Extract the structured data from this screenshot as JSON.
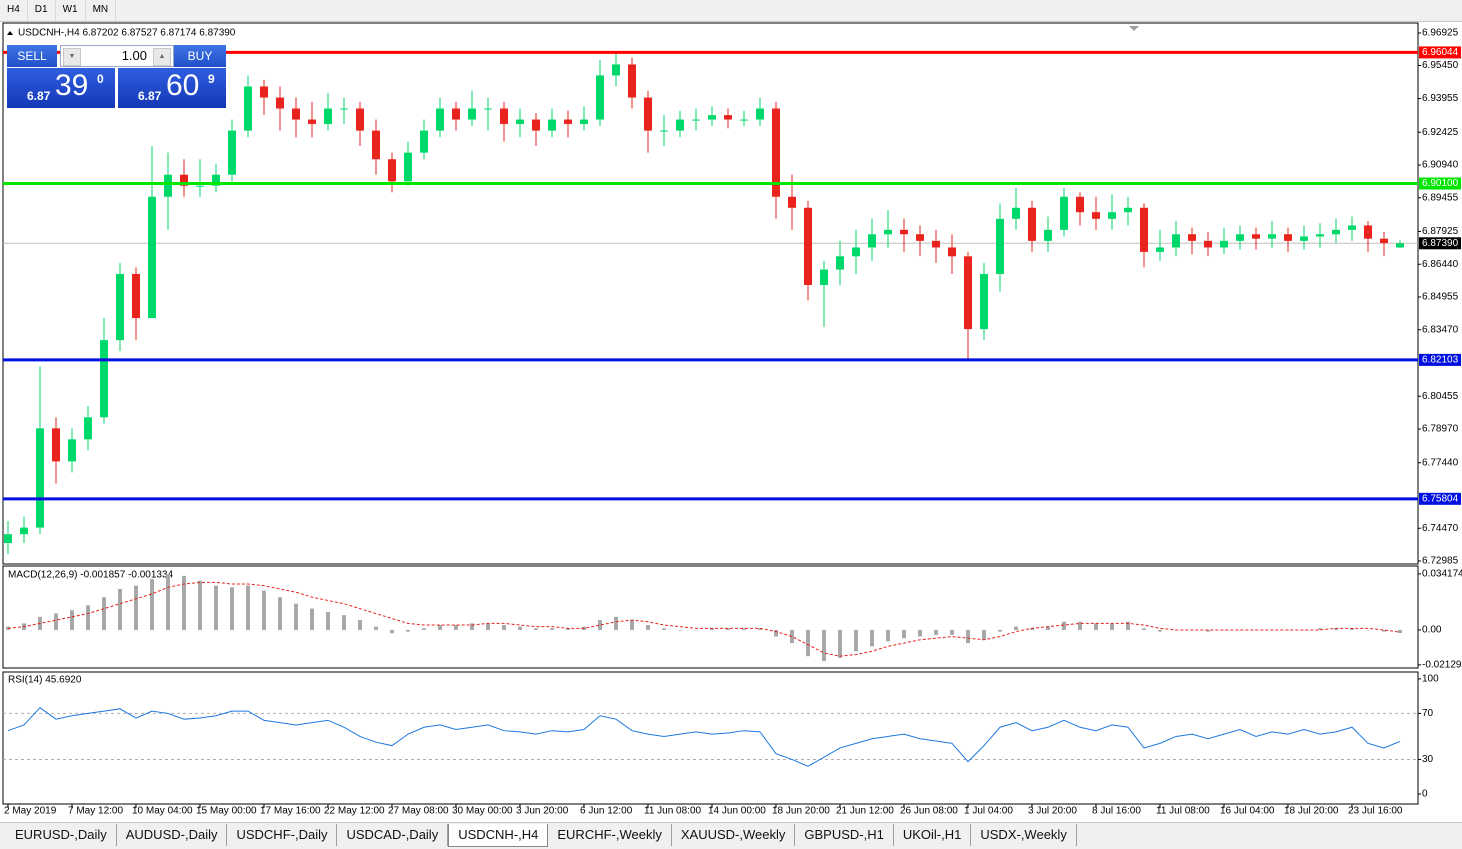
{
  "toolbar": {
    "timeframes": [
      "H4",
      "D1",
      "W1",
      "MN"
    ]
  },
  "trade_panel": {
    "sell_label": "SELL",
    "buy_label": "BUY",
    "lot": "1.00",
    "bid": {
      "prefix": "6.87",
      "big": "39",
      "small": "0"
    },
    "ask": {
      "prefix": "6.87",
      "big": "60",
      "small": "9"
    }
  },
  "chart_data": [
    {
      "type": "candlestick",
      "title": "USDCNH-,H4 6.87202 6.87527 6.87174 6.87390",
      "up_color": "#00d96a",
      "down_color": "#e8241c",
      "ylim": [
        6.72849,
        6.97378
      ],
      "yticks": [
        6.96925,
        {
          "value": 6.9545,
          "label": "6.95450"
        },
        6.93955,
        6.92425,
        {
          "value": 6.9094,
          "label": "6.90940"
        },
        6.89455,
        6.87925,
        {
          "value": 6.8644,
          "label": "6.86440"
        },
        6.84955,
        {
          "value": 6.8347,
          "label": "6.83470"
        },
        6.80455,
        {
          "value": 6.7897,
          "label": "6.78970"
        },
        {
          "value": 6.7744,
          "label": "6.77440"
        },
        {
          "value": 6.7447,
          "label": "6.74470"
        },
        6.72985
      ],
      "hlines": [
        {
          "value": 6.96044,
          "color": "#ff0000"
        },
        {
          "value": 6.901,
          "label": "6.90100",
          "color": "#00e600"
        },
        {
          "value": 6.82103,
          "color": "#0010e0"
        },
        {
          "value": 6.75804,
          "color": "#0010e0"
        }
      ],
      "last_price": {
        "value": 6.8739,
        "label": "6.87390",
        "color": "#c0c0c0"
      },
      "categories": [
        "2 May 2019",
        null,
        null,
        null,
        "7 May 12:00",
        null,
        null,
        null,
        "10 May 04:00",
        null,
        null,
        null,
        "15 May 00:00",
        null,
        null,
        null,
        "17 May 16:00",
        null,
        null,
        null,
        "22 May 12:00",
        null,
        null,
        null,
        "27 May 08:00",
        null,
        null,
        null,
        "30 May 00:00",
        null,
        null,
        null,
        "3 Jun 20:00",
        null,
        null,
        null,
        "6 Jun 12:00",
        null,
        null,
        null,
        "11 Jun 08:00",
        null,
        null,
        null,
        "14 Jun 00:00",
        null,
        null,
        null,
        "18 Jun 20:00",
        null,
        null,
        null,
        "21 Jun 12:00",
        null,
        null,
        null,
        "26 Jun 08:00",
        null,
        null,
        null,
        "1 Jul 04:00",
        null,
        null,
        null,
        "3 Jul 20:00",
        null,
        null,
        null,
        "8 Jul 16:00",
        null,
        null,
        null,
        "11 Jul 08:00",
        null,
        null,
        null,
        "16 Jul 04:00",
        null,
        null,
        null,
        "18 Jul 20:00",
        null,
        null,
        null,
        "23 Jul 16:00",
        null,
        null,
        null
      ],
      "candles": [
        [
          6.738,
          6.748,
          6.733,
          6.742
        ],
        [
          6.742,
          6.75,
          6.738,
          6.745
        ],
        [
          6.745,
          6.818,
          6.742,
          6.79
        ],
        [
          6.79,
          6.795,
          6.765,
          6.775
        ],
        [
          6.775,
          6.79,
          6.77,
          6.785
        ],
        [
          6.785,
          6.8,
          6.78,
          6.795
        ],
        [
          6.795,
          6.84,
          6.792,
          6.83
        ],
        [
          6.83,
          6.865,
          6.825,
          6.86
        ],
        [
          6.86,
          6.863,
          6.83,
          6.84
        ],
        [
          6.84,
          6.918,
          6.84,
          6.895
        ],
        [
          6.895,
          6.915,
          6.88,
          6.905
        ],
        [
          6.905,
          6.912,
          6.895,
          6.9
        ],
        [
          6.9,
          6.912,
          6.895,
          6.9
        ],
        [
          6.9,
          6.91,
          6.897,
          6.905
        ],
        [
          6.905,
          6.93,
          6.902,
          6.925
        ],
        [
          6.925,
          6.95,
          6.922,
          6.945
        ],
        [
          6.945,
          6.948,
          6.932,
          6.94
        ],
        [
          6.94,
          6.945,
          6.925,
          6.935
        ],
        [
          6.935,
          6.94,
          6.922,
          6.93
        ],
        [
          6.93,
          6.938,
          6.922,
          6.928
        ],
        [
          6.928,
          6.942,
          6.925,
          6.935
        ],
        [
          6.935,
          6.94,
          6.928,
          6.935
        ],
        [
          6.935,
          6.938,
          6.918,
          6.925
        ],
        [
          6.925,
          6.93,
          6.905,
          6.912
        ],
        [
          6.912,
          6.915,
          6.897,
          6.902
        ],
        [
          6.902,
          6.92,
          6.9,
          6.915
        ],
        [
          6.915,
          6.93,
          6.912,
          6.925
        ],
        [
          6.925,
          6.94,
          6.922,
          6.935
        ],
        [
          6.935,
          6.938,
          6.925,
          6.93
        ],
        [
          6.93,
          6.943,
          6.927,
          6.935
        ],
        [
          6.935,
          6.94,
          6.925,
          6.935
        ],
        [
          6.935,
          6.938,
          6.92,
          6.928
        ],
        [
          6.928,
          6.935,
          6.922,
          6.93
        ],
        [
          6.93,
          6.933,
          6.918,
          6.925
        ],
        [
          6.925,
          6.935,
          6.922,
          6.93
        ],
        [
          6.93,
          6.934,
          6.922,
          6.928
        ],
        [
          6.928,
          6.936,
          6.925,
          6.93
        ],
        [
          6.93,
          6.957,
          6.927,
          6.95
        ],
        [
          6.95,
          6.9604,
          6.945,
          6.955
        ],
        [
          6.955,
          6.958,
          6.935,
          6.94
        ],
        [
          6.94,
          6.943,
          6.915,
          6.925
        ],
        [
          6.925,
          6.932,
          6.918,
          6.925
        ],
        [
          6.925,
          6.934,
          6.922,
          6.93
        ],
        [
          6.93,
          6.935,
          6.925,
          6.93
        ],
        [
          6.93,
          6.936,
          6.927,
          6.932
        ],
        [
          6.932,
          6.935,
          6.926,
          6.93
        ],
        [
          6.93,
          6.934,
          6.927,
          6.93
        ],
        [
          6.93,
          6.94,
          6.927,
          6.935
        ],
        [
          6.935,
          6.938,
          6.885,
          6.895
        ],
        [
          6.895,
          6.905,
          6.88,
          6.89
        ],
        [
          6.89,
          6.893,
          6.848,
          6.855
        ],
        [
          6.855,
          6.866,
          6.836,
          6.862
        ],
        [
          6.862,
          6.875,
          6.855,
          6.868
        ],
        [
          6.868,
          6.88,
          6.86,
          6.872
        ],
        [
          6.872,
          6.885,
          6.866,
          6.878
        ],
        [
          6.878,
          6.889,
          6.872,
          6.88
        ],
        [
          6.88,
          6.885,
          6.87,
          6.878
        ],
        [
          6.878,
          6.882,
          6.868,
          6.875
        ],
        [
          6.875,
          6.88,
          6.865,
          6.872
        ],
        [
          6.872,
          6.878,
          6.86,
          6.868
        ],
        [
          6.868,
          6.87,
          6.821,
          6.835
        ],
        [
          6.835,
          6.865,
          6.83,
          6.86
        ],
        [
          6.86,
          6.892,
          6.852,
          6.885
        ],
        [
          6.885,
          6.899,
          6.88,
          6.89
        ],
        [
          6.89,
          6.893,
          6.87,
          6.875
        ],
        [
          6.875,
          6.886,
          6.87,
          6.88
        ],
        [
          6.88,
          6.899,
          6.877,
          6.895
        ],
        [
          6.895,
          6.897,
          6.882,
          6.888
        ],
        [
          6.888,
          6.895,
          6.88,
          6.885
        ],
        [
          6.885,
          6.896,
          6.88,
          6.888
        ],
        [
          6.888,
          6.895,
          6.882,
          6.89
        ],
        [
          6.89,
          6.892,
          6.863,
          6.87
        ],
        [
          6.87,
          6.88,
          6.866,
          6.872
        ],
        [
          6.872,
          6.884,
          6.868,
          6.878
        ],
        [
          6.878,
          6.881,
          6.869,
          6.875
        ],
        [
          6.875,
          6.879,
          6.868,
          6.872
        ],
        [
          6.872,
          6.881,
          6.869,
          6.875
        ],
        [
          6.875,
          6.882,
          6.871,
          6.878
        ],
        [
          6.878,
          6.881,
          6.871,
          6.876
        ],
        [
          6.876,
          6.884,
          6.872,
          6.878
        ],
        [
          6.878,
          6.881,
          6.87,
          6.875
        ],
        [
          6.875,
          6.882,
          6.871,
          6.877
        ],
        [
          6.877,
          6.883,
          6.872,
          6.878
        ],
        [
          6.878,
          6.885,
          6.874,
          6.88
        ],
        [
          6.88,
          6.886,
          6.875,
          6.882
        ],
        [
          6.882,
          6.884,
          6.87,
          6.876
        ],
        [
          6.876,
          6.879,
          6.868,
          6.874
        ],
        [
          6.87202,
          6.87527,
          6.87174,
          6.8739
        ]
      ]
    },
    {
      "type": "macd",
      "title": "MACD(12,26,9) -0.001857 -0.001334",
      "histogram_color": "#a8a8a8",
      "signal_color": "#e8241c",
      "ylim": [
        -0.0232,
        0.039
      ],
      "yticks": [
        0.034174,
        {
          "value": 0,
          "label": "0.00"
        },
        -0.021296
      ],
      "histogram": [
        0.002,
        0.004,
        0.008,
        0.01,
        0.012,
        0.015,
        0.02,
        0.025,
        0.027,
        0.031,
        0.034,
        0.033,
        0.03,
        0.027,
        0.026,
        0.027,
        0.024,
        0.02,
        0.016,
        0.013,
        0.011,
        0.009,
        0.006,
        0.002,
        -0.002,
        -0.001,
        0.001,
        0.003,
        0.003,
        0.004,
        0.004,
        0.003,
        0.002,
        0.001,
        0.001,
        0.001,
        0.002,
        0.006,
        0.008,
        0.006,
        0.003,
        0.001,
        0.0,
        0.0,
        0.001,
        0.001,
        0.001,
        0.001,
        -0.004,
        -0.008,
        -0.016,
        -0.019,
        -0.017,
        -0.013,
        -0.01,
        -0.007,
        -0.005,
        -0.004,
        -0.003,
        -0.003,
        -0.008,
        -0.006,
        -0.001,
        0.002,
        0.001,
        0.002,
        0.005,
        0.005,
        0.004,
        0.004,
        0.005,
        0.001,
        -0.001,
        0.0,
        0.0,
        -0.001,
        0.0,
        0.0,
        0.0,
        0.0,
        0.0,
        0.0,
        0.001,
        0.001,
        0.001,
        0.0,
        -0.001,
        -0.001857
      ],
      "signal": [
        0.001,
        0.002,
        0.004,
        0.006,
        0.008,
        0.01,
        0.013,
        0.016,
        0.019,
        0.022,
        0.026,
        0.028,
        0.029,
        0.029,
        0.028,
        0.028,
        0.027,
        0.025,
        0.023,
        0.02,
        0.018,
        0.016,
        0.013,
        0.01,
        0.007,
        0.004,
        0.003,
        0.003,
        0.003,
        0.003,
        0.004,
        0.004,
        0.003,
        0.002,
        0.002,
        0.001,
        0.001,
        0.003,
        0.005,
        0.006,
        0.005,
        0.003,
        0.002,
        0.001,
        0.001,
        0.001,
        0.001,
        0.001,
        -0.001,
        -0.004,
        -0.009,
        -0.014,
        -0.016,
        -0.015,
        -0.013,
        -0.01,
        -0.008,
        -0.006,
        -0.005,
        -0.004,
        -0.005,
        -0.006,
        -0.004,
        -0.001,
        0.001,
        0.002,
        0.003,
        0.004,
        0.004,
        0.004,
        0.004,
        0.003,
        0.001,
        0.0,
        0.0,
        0.0,
        0.0,
        0.0,
        0.0,
        0.0,
        0.0,
        0.0,
        0.0,
        0.001,
        0.001,
        0.001,
        0.0,
        -0.001334
      ]
    },
    {
      "type": "line",
      "title": "RSI(14) 45.6920",
      "color": "#1e78e0",
      "ylim": [
        -8.7,
        106
      ],
      "yticks": [
        100,
        70,
        30,
        0
      ],
      "values": [
        55,
        60,
        75,
        65,
        68,
        70,
        72,
        74,
        66,
        72,
        70,
        65,
        66,
        68,
        72,
        72,
        64,
        62,
        60,
        62,
        64,
        58,
        50,
        45,
        42,
        52,
        58,
        60,
        56,
        58,
        60,
        55,
        54,
        52,
        55,
        54,
        56,
        68,
        65,
        55,
        52,
        50,
        52,
        54,
        52,
        53,
        55,
        54,
        35,
        30,
        24,
        32,
        40,
        44,
        48,
        50,
        52,
        48,
        46,
        44,
        28,
        42,
        58,
        62,
        55,
        58,
        64,
        58,
        55,
        60,
        58,
        40,
        44,
        50,
        52,
        48,
        52,
        56,
        50,
        54,
        52,
        56,
        52,
        54,
        58,
        44,
        40,
        45.692
      ]
    }
  ],
  "tabs": {
    "items": [
      "EURUSD-,Daily",
      "AUDUSD-,Daily",
      "USDCHF-,Daily",
      "USDCAD-,Daily",
      "USDCNH-,H4",
      "EURCHF-,Weekly",
      "XAUUSD-,Weekly",
      "GBPUSD-,H1",
      "UKOil-,H1",
      "USDX-,Weekly"
    ],
    "active": 4
  }
}
